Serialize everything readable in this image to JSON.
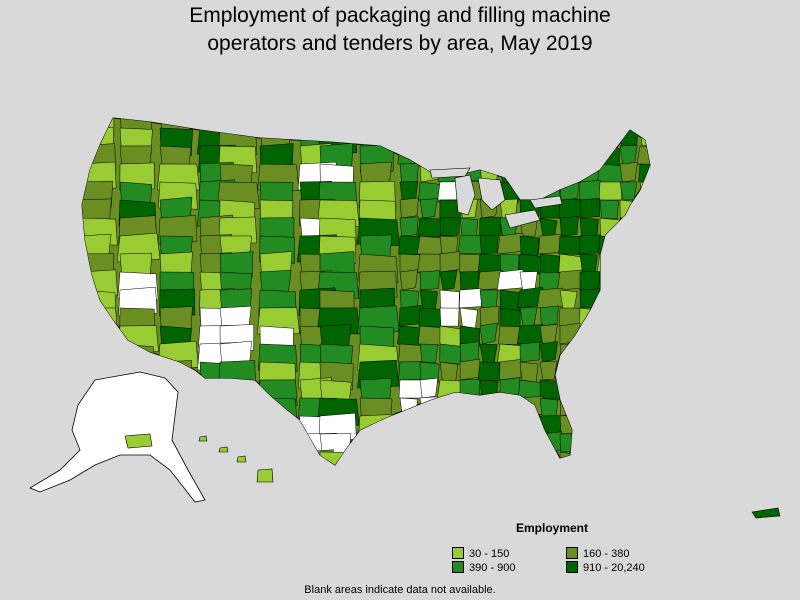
{
  "title_line1": "Employment of packaging and filling machine",
  "title_line2": "operators and tenders by area, May 2019",
  "legend": {
    "title": "Employment",
    "items": [
      {
        "label": "30 - 150",
        "color": "#99cc33"
      },
      {
        "label": "160 - 380",
        "color": "#6b8e23"
      },
      {
        "label": "390 - 900",
        "color": "#228b22"
      },
      {
        "label": "910 - 20,240",
        "color": "#006400"
      }
    ]
  },
  "note": "Blank areas indicate data not available.",
  "colors": {
    "background": "#d9d9d9",
    "no_data": "#ffffff",
    "border": "#000000"
  }
}
